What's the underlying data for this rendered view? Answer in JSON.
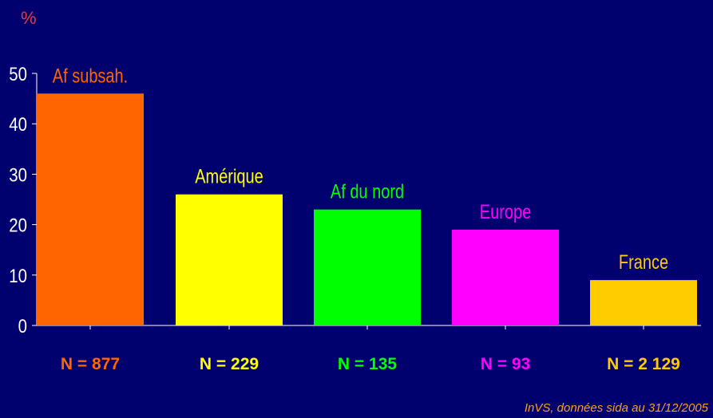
{
  "chart_data": {
    "type": "bar",
    "unit_label": "%",
    "categories": [
      "Af subsah.",
      "Amérique",
      "Af du nord",
      "Europe",
      "France"
    ],
    "values": [
      46,
      26,
      23,
      19,
      9
    ],
    "counts": [
      "N = 877",
      "N = 229",
      "N = 135",
      "N = 93",
      "N = 2 129"
    ],
    "colors": [
      "#ff6600",
      "#ffff00",
      "#00ff00",
      "#ff00ff",
      "#ffcc00"
    ],
    "ylim": [
      0,
      50
    ],
    "yticks": [
      0,
      10,
      20,
      30,
      40,
      50
    ],
    "grid": false,
    "source": "InVS, données sida au 31/12/2005"
  }
}
